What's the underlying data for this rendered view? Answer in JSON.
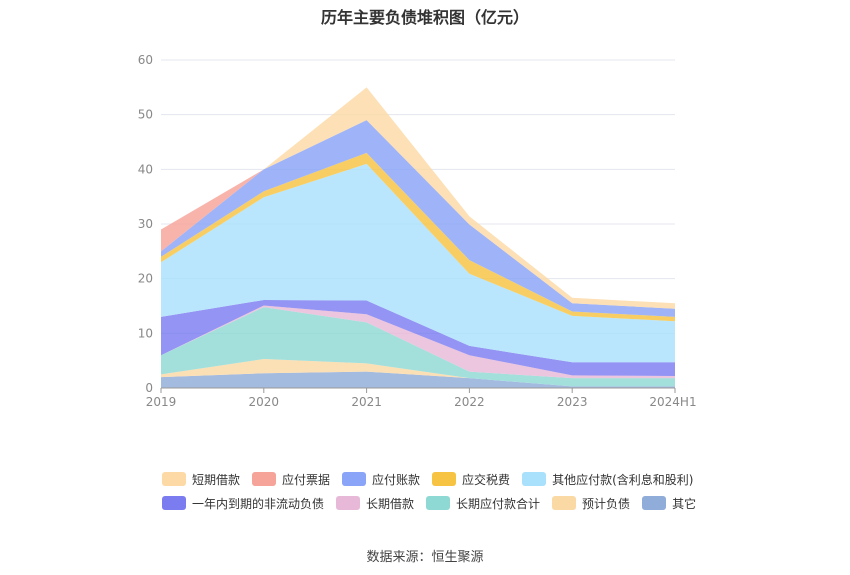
{
  "title": "历年主要负债堆积图（亿元）",
  "source": "数据来源：恒生聚源",
  "chart_data": {
    "type": "area",
    "stacked": true,
    "title": "历年主要负债堆积图（亿元）",
    "categories": [
      "2019",
      "2020",
      "2021",
      "2022",
      "2023",
      "2024H1"
    ],
    "ylim": [
      0,
      60
    ],
    "yticks": [
      0,
      10,
      20,
      30,
      40,
      50,
      60
    ],
    "grid": true,
    "legend_position": "bottom",
    "series": [
      {
        "name": "其它",
        "color": "#90acd9",
        "values": [
          2.0,
          2.7,
          3.0,
          1.8,
          0.3,
          0.3
        ]
      },
      {
        "name": "预计负债",
        "color": "#fbd9a5",
        "values": [
          0.5,
          2.6,
          1.5,
          0.0,
          0.0,
          0.0
        ]
      },
      {
        "name": "长期应付款合计",
        "color": "#8fd9d4",
        "values": [
          3.5,
          9.5,
          7.5,
          1.2,
          1.5,
          1.5
        ]
      },
      {
        "name": "长期借款",
        "color": "#e8b8d8",
        "values": [
          0.0,
          0.3,
          1.5,
          3.0,
          0.5,
          0.4
        ]
      },
      {
        "name": "一年内到期的非流动负债",
        "color": "#7b7cf0",
        "values": [
          7.0,
          1.0,
          2.5,
          1.7,
          2.4,
          2.5
        ]
      },
      {
        "name": "其他应付款(含利息和股利)",
        "color": "#a9e0fb",
        "values": [
          10.0,
          18.8,
          25.0,
          13.2,
          8.5,
          7.5
        ]
      },
      {
        "name": "应交税费",
        "color": "#f7c342",
        "values": [
          1.0,
          1.1,
          2.0,
          2.5,
          0.8,
          0.8
        ]
      },
      {
        "name": "应付账款",
        "color": "#8aa4f7",
        "values": [
          1.0,
          4.0,
          6.0,
          6.5,
          1.5,
          1.5
        ]
      },
      {
        "name": "应付票据",
        "color": "#f6a499",
        "values": [
          4.0,
          0.0,
          0.0,
          0.0,
          0.0,
          0.0
        ]
      },
      {
        "name": "短期借款",
        "color": "#fdd9a5",
        "values": [
          0.0,
          0.0,
          6.0,
          1.5,
          1.0,
          1.0
        ]
      }
    ],
    "legend_order": [
      "短期借款",
      "应付票据",
      "应付账款",
      "应交税费",
      "其他应付款(含利息和股利)",
      "一年内到期的非流动负债",
      "长期借款",
      "长期应付款合计",
      "预计负债",
      "其它"
    ]
  }
}
